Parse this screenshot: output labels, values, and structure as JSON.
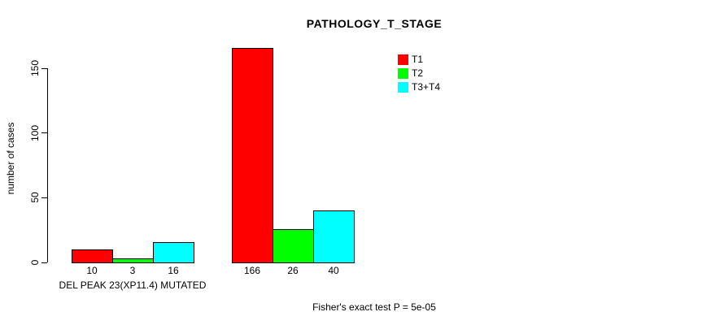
{
  "chart_data": {
    "type": "bar",
    "title": "PATHOLOGY_T_STAGE",
    "ylabel": "number of cases",
    "xlabel": "",
    "ylim": [
      0,
      150
    ],
    "yticks": [
      0,
      50,
      100,
      150
    ],
    "grid": false,
    "legend_position": "top-right",
    "categories": [
      "DEL PEAK 23(XP11.4) MUTATED",
      ""
    ],
    "series": [
      {
        "name": "T1",
        "color": "#ff0000",
        "values": [
          10,
          166
        ]
      },
      {
        "name": "T2",
        "color": "#00ff00",
        "values": [
          3,
          26
        ]
      },
      {
        "name": "T3+T4",
        "color": "#00ffff",
        "values": [
          16,
          40
        ]
      }
    ],
    "bar_labels": [
      [
        "10",
        "3",
        "16"
      ],
      [
        "166",
        "26",
        "40"
      ]
    ],
    "footnote": "Fisher's exact test P = 5e-05"
  },
  "colors": {
    "background": "#ffffff",
    "text": "#000000",
    "bar_border": "#000000",
    "axis": "#000000"
  }
}
